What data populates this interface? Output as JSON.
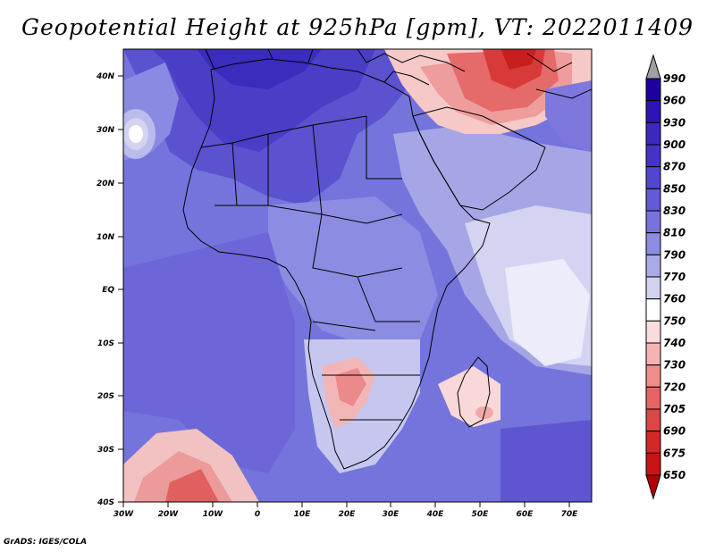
{
  "title": "Geopotential Height at 925hPa [gpm], VT: 2022011409",
  "credit": "GrADS: IGES/COLA",
  "map": {
    "lat_labels": [
      "40N",
      "30N",
      "20N",
      "10N",
      "EQ",
      "10S",
      "20S",
      "30S",
      "40S"
    ],
    "lon_labels": [
      "30W",
      "20W",
      "10W",
      "0",
      "10E",
      "20E",
      "30E",
      "40E",
      "50E",
      "60E",
      "70E"
    ]
  },
  "colorbar": {
    "levels": [
      "990",
      "960",
      "930",
      "900",
      "870",
      "850",
      "830",
      "810",
      "790",
      "770",
      "760",
      "750",
      "740",
      "730",
      "720",
      "705",
      "690",
      "675",
      "650"
    ],
    "colors": [
      "#a0a0a0",
      "#1e00a0",
      "#2d14b4",
      "#3c28be",
      "#4632c8",
      "#5046d2",
      "#645ad7",
      "#7873dc",
      "#8c8ce1",
      "#aaaae6",
      "#d2d2f0",
      "#ffffff",
      "#fadcdc",
      "#f5b4b4",
      "#f08c8c",
      "#e66464",
      "#dc4646",
      "#d22828",
      "#c81414",
      "#b40000"
    ]
  }
}
